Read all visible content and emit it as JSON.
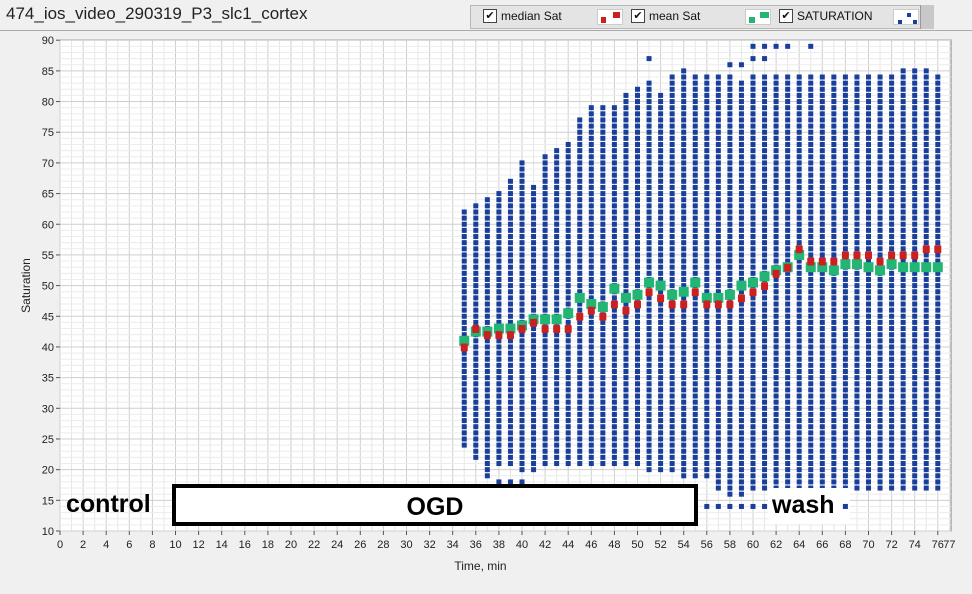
{
  "window": {
    "title": "474_ios_video_290319_P3_slc1_cortex"
  },
  "legend": {
    "items": [
      {
        "label": "median Sat",
        "checked": true,
        "color": "#cc2020",
        "check_glyph": "✔"
      },
      {
        "label": "mean Sat",
        "checked": true,
        "color": "#22b573",
        "check_glyph": "✔"
      },
      {
        "label": "SATURATION",
        "checked": true,
        "color": "#1a3f9a",
        "check_glyph": "✔"
      }
    ]
  },
  "annotations": {
    "control": "control",
    "ogd": "OGD",
    "wash": "wash"
  },
  "chart_data": {
    "type": "scatter",
    "xlabel": "Time, min",
    "ylabel": "Saturation",
    "xlim": [
      0,
      78
    ],
    "ylim": [
      10,
      91
    ],
    "x_ticks": [
      0,
      2,
      4,
      6,
      8,
      10,
      12,
      14,
      16,
      18,
      20,
      22,
      24,
      26,
      28,
      30,
      32,
      34,
      36,
      38,
      40,
      42,
      44,
      46,
      48,
      50,
      52,
      54,
      56,
      58,
      60,
      62,
      64,
      66,
      68,
      70,
      72,
      74,
      76
    ],
    "x_tick_labels": [
      "0",
      "2",
      "4",
      "6",
      "8",
      "10",
      "12",
      "14",
      "16",
      "18",
      "20",
      "22",
      "24",
      "26",
      "28",
      "30",
      "32",
      "34",
      "36",
      "38",
      "40",
      "42",
      "44",
      "46",
      "48",
      "50",
      "52",
      "54",
      "56",
      "58",
      "60",
      "62",
      "64",
      "66",
      "68",
      "70",
      "72",
      "74",
      "76"
    ],
    "extra_x_tick_labels": [
      {
        "x": 77,
        "label": "77"
      }
    ],
    "y_ticks": [
      10,
      15,
      20,
      25,
      30,
      35,
      40,
      45,
      50,
      55,
      60,
      65,
      70,
      75,
      80,
      85,
      90
    ],
    "y_tick_labels": [
      "10",
      "15",
      "20",
      "25",
      "30",
      "35",
      "40",
      "45",
      "50",
      "55",
      "60",
      "65",
      "70",
      "75",
      "80",
      "85",
      "90"
    ],
    "grid": true,
    "legend_position": "top",
    "series": [
      {
        "name": "SATURATION",
        "kind": "range",
        "color": "#1a3f9a",
        "step": 1,
        "columns": [
          {
            "x": 35,
            "low": 24,
            "high": 62,
            "extra": []
          },
          {
            "x": 36,
            "low": 22,
            "high": 63,
            "extra": []
          },
          {
            "x": 37,
            "low": 21,
            "high": 64,
            "extra": [
              19,
              20
            ]
          },
          {
            "x": 38,
            "low": 21,
            "high": 65,
            "extra": [
              18
            ]
          },
          {
            "x": 39,
            "low": 21,
            "high": 67,
            "extra": [
              18
            ]
          },
          {
            "x": 40,
            "low": 21,
            "high": 69,
            "extra": [
              18,
              20,
              70
            ]
          },
          {
            "x": 41,
            "low": 21,
            "high": 66,
            "extra": [
              20
            ]
          },
          {
            "x": 42,
            "low": 21,
            "high": 71,
            "extra": []
          },
          {
            "x": 43,
            "low": 21,
            "high": 72,
            "extra": []
          },
          {
            "x": 44,
            "low": 21,
            "high": 73,
            "extra": []
          },
          {
            "x": 45,
            "low": 21,
            "high": 77,
            "extra": []
          },
          {
            "x": 46,
            "low": 21,
            "high": 78,
            "extra": [
              79
            ]
          },
          {
            "x": 47,
            "low": 21,
            "high": 78,
            "extra": [
              79
            ]
          },
          {
            "x": 48,
            "low": 21,
            "high": 78,
            "extra": [
              79
            ]
          },
          {
            "x": 49,
            "low": 21,
            "high": 81,
            "extra": []
          },
          {
            "x": 50,
            "low": 21,
            "high": 82,
            "extra": []
          },
          {
            "x": 51,
            "low": 20,
            "high": 83,
            "extra": [
              87
            ]
          },
          {
            "x": 52,
            "low": 20,
            "high": 81,
            "extra": []
          },
          {
            "x": 53,
            "low": 20,
            "high": 84,
            "extra": []
          },
          {
            "x": 54,
            "low": 19,
            "high": 84,
            "extra": [
              85
            ]
          },
          {
            "x": 55,
            "low": 19,
            "high": 84,
            "extra": []
          },
          {
            "x": 56,
            "low": 19,
            "high": 84,
            "extra": [
              14
            ]
          },
          {
            "x": 57,
            "low": 17,
            "high": 84,
            "extra": [
              14
            ]
          },
          {
            "x": 58,
            "low": 16,
            "high": 84,
            "extra": [
              14,
              86
            ]
          },
          {
            "x": 59,
            "low": 16,
            "high": 83,
            "extra": [
              14,
              86
            ]
          },
          {
            "x": 60,
            "low": 17,
            "high": 84,
            "extra": [
              14,
              87,
              89
            ]
          },
          {
            "x": 61,
            "low": 17,
            "high": 84,
            "extra": [
              14,
              87,
              89
            ]
          },
          {
            "x": 62,
            "low": 17,
            "high": 84,
            "extra": [
              14,
              89
            ]
          },
          {
            "x": 63,
            "low": 17,
            "high": 84,
            "extra": [
              89
            ]
          },
          {
            "x": 64,
            "low": 17,
            "high": 84,
            "extra": []
          },
          {
            "x": 65,
            "low": 17,
            "high": 84,
            "extra": [
              89
            ]
          },
          {
            "x": 66,
            "low": 17,
            "high": 84,
            "extra": []
          },
          {
            "x": 67,
            "low": 17,
            "high": 84,
            "extra": []
          },
          {
            "x": 68,
            "low": 17,
            "high": 84,
            "extra": [
              14
            ]
          },
          {
            "x": 69,
            "low": 17,
            "high": 84,
            "extra": []
          },
          {
            "x": 70,
            "low": 17,
            "high": 84,
            "extra": []
          },
          {
            "x": 71,
            "low": 17,
            "high": 84,
            "extra": []
          },
          {
            "x": 72,
            "low": 17,
            "high": 84,
            "extra": []
          },
          {
            "x": 73,
            "low": 17,
            "high": 85,
            "extra": []
          },
          {
            "x": 74,
            "low": 17,
            "high": 85,
            "extra": []
          },
          {
            "x": 75,
            "low": 17,
            "high": 85,
            "extra": []
          },
          {
            "x": 76,
            "low": 17,
            "high": 84,
            "extra": []
          }
        ]
      },
      {
        "name": "mean Sat",
        "color": "#22b573",
        "x": [
          35,
          36,
          37,
          38,
          39,
          40,
          41,
          42,
          43,
          44,
          45,
          46,
          47,
          48,
          49,
          50,
          51,
          52,
          53,
          54,
          55,
          56,
          57,
          58,
          59,
          60,
          61,
          62,
          63,
          64,
          65,
          66,
          67,
          68,
          69,
          70,
          71,
          72,
          73,
          74,
          75,
          76
        ],
        "y": [
          41,
          42.5,
          42.5,
          43,
          43,
          43.5,
          44.5,
          44.5,
          44.5,
          45.5,
          48,
          47,
          46.5,
          49.5,
          48,
          48.5,
          50.5,
          50,
          48.5,
          49,
          50.5,
          48,
          48,
          48.5,
          50,
          50.5,
          51.5,
          52.5,
          53,
          55,
          53,
          53,
          52.5,
          53.5,
          53.5,
          53,
          52.5,
          53.5,
          53,
          53,
          53,
          53
        ]
      },
      {
        "name": "median Sat",
        "color": "#cc2020",
        "x": [
          35,
          36,
          37,
          38,
          39,
          40,
          41,
          42,
          43,
          44,
          45,
          46,
          47,
          48,
          49,
          50,
          51,
          52,
          53,
          54,
          55,
          56,
          57,
          58,
          59,
          60,
          61,
          62,
          63,
          64,
          65,
          66,
          67,
          68,
          69,
          70,
          71,
          72,
          73,
          74,
          75,
          76
        ],
        "y": [
          40,
          43,
          42,
          42,
          42,
          43,
          44,
          43,
          43,
          43,
          45,
          46,
          45,
          47,
          46,
          47,
          49,
          48,
          47,
          47,
          49,
          47,
          47,
          47,
          48,
          49,
          50,
          52,
          53,
          56,
          54,
          54,
          54,
          55,
          55,
          55,
          54,
          55,
          55,
          55,
          56,
          56
        ]
      }
    ]
  }
}
